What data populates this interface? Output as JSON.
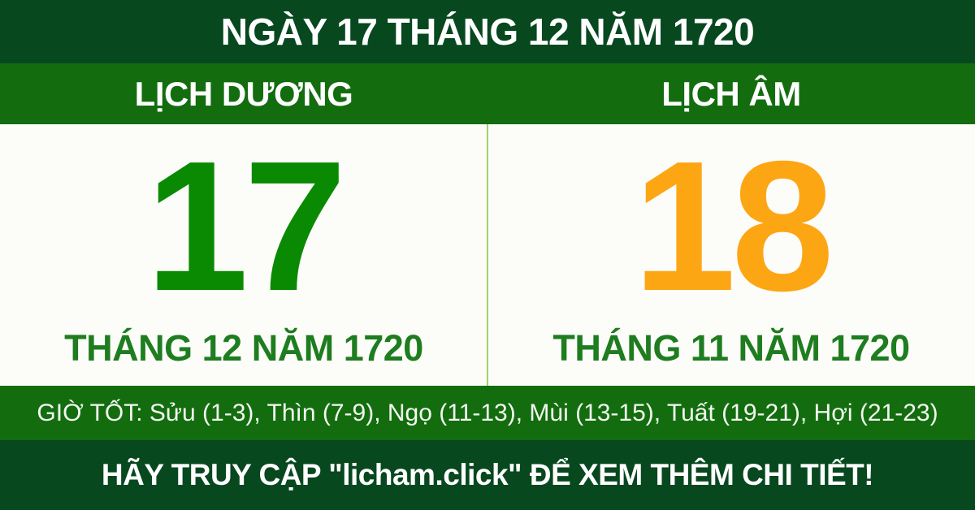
{
  "header": {
    "title": "NGÀY 17 THÁNG 12 NĂM 1720"
  },
  "columns": {
    "solar": {
      "label": "LỊCH DƯƠNG",
      "day": "17",
      "month_year": "THÁNG 12 NĂM 1720"
    },
    "lunar": {
      "label": "LỊCH ÂM",
      "day": "18",
      "month_year": "THÁNG 11 NĂM 1720"
    }
  },
  "good_hours": {
    "text": "GIỜ TỐT: Sửu (1-3), Thìn (7-9), Ngọ (11-13), Mùi (13-15), Tuất (19-21), Hợi (21-23)"
  },
  "footer": {
    "text": "HÃY TRUY CẬP \"licham.click\" ĐỂ XEM THÊM CHI TIẾT!",
    "site": "licham.click"
  },
  "colors": {
    "dark_green_bg": "#07481f",
    "bright_green_band": "#136d0f",
    "solar_day_green": "#0a8a02",
    "lunar_day_orange": "#fda613",
    "month_label_green": "#1e7d1f",
    "divider_light_green": "#9ed36a",
    "panel_white": "#fcfcf9",
    "text_white": "#ffffff"
  }
}
